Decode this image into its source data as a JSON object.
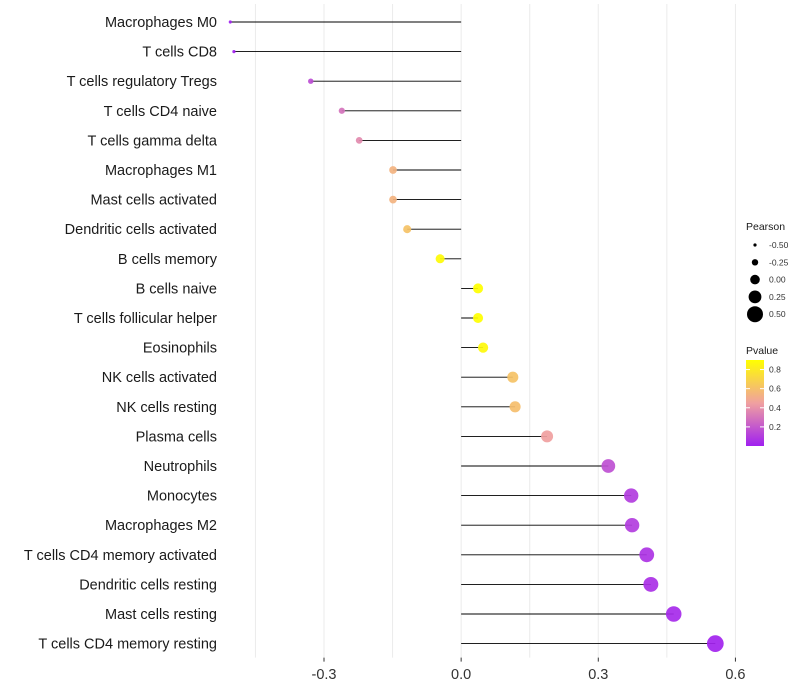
{
  "chart_data": {
    "type": "lollipop",
    "categories": [
      "Macrophages M0",
      "T cells CD8",
      "T cells regulatory  Tregs",
      "T cells CD4 naive",
      "T cells gamma delta",
      "Macrophages M1",
      "Mast cells activated",
      "Dendritic cells activated",
      "B cells memory",
      "B cells naive",
      "T cells follicular helper",
      "Eosinophils",
      "NK cells activated",
      "NK cells resting",
      "Plasma cells",
      "Neutrophils",
      "Monocytes",
      "Macrophages M2",
      "T cells CD4 memory activated",
      "Dendritic cells resting",
      "Mast cells resting",
      "T cells CD4 memory resting"
    ],
    "values": [
      -0.505,
      -0.497,
      -0.329,
      -0.261,
      -0.223,
      -0.149,
      -0.149,
      -0.118,
      -0.046,
      0.037,
      0.037,
      0.048,
      0.113,
      0.118,
      0.188,
      0.322,
      0.372,
      0.374,
      0.406,
      0.415,
      0.465,
      0.556
    ],
    "pvalues": [
      0.002,
      0.003,
      0.14,
      0.26,
      0.33,
      0.5,
      0.5,
      0.58,
      0.88,
      0.9,
      0.9,
      0.87,
      0.58,
      0.56,
      0.4,
      0.15,
      0.09,
      0.09,
      0.06,
      0.05,
      0.03,
      0.01
    ],
    "xlim": [
      -0.51,
      0.61
    ],
    "x_ticks": [
      -0.3,
      0.0,
      0.3,
      0.6
    ],
    "x_tick_labels": [
      "-0.3",
      "0.0",
      "0.3",
      "0.6"
    ],
    "xlabel": "",
    "ylabel": "",
    "legend_size": {
      "title": "Pearson",
      "values": [
        -0.5,
        -0.25,
        0.0,
        0.25,
        0.5
      ],
      "labels": [
        "-0.50",
        "-0.25",
        "0.00",
        "0.25",
        "0.50"
      ]
    },
    "legend_color": {
      "title": "Pvalue",
      "range": [
        0.0,
        0.9
      ],
      "ticks": [
        0.2,
        0.4,
        0.6,
        0.8
      ],
      "labels": [
        "0.2",
        "0.4",
        "0.6",
        "0.8"
      ],
      "colors": [
        "#a020f0",
        "#f5a5a5",
        "#ffff00"
      ]
    },
    "grid": true,
    "legend_position": "right"
  }
}
